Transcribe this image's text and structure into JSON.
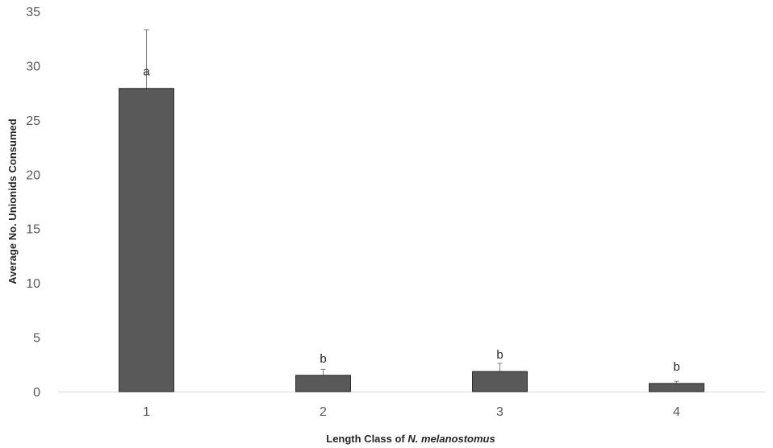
{
  "chart_data": {
    "type": "bar",
    "categories": [
      "1",
      "2",
      "3",
      "4"
    ],
    "values": [
      27.9,
      1.5,
      1.85,
      0.75
    ],
    "error": [
      5.4,
      0.55,
      0.75,
      0.2
    ],
    "significance_labels": [
      "a",
      "b",
      "b",
      "b"
    ],
    "xlabel_prefix": "Length Class of ",
    "xlabel_species": "N. melanostomus",
    "ylabel": "Average No. Unionids Consumed",
    "ylim": [
      0,
      35
    ],
    "yticks": [
      0,
      5,
      10,
      15,
      20,
      25,
      30,
      35
    ],
    "grid": false,
    "legend": "none",
    "bar_color": "#595959",
    "bar_edge_color": "#262626",
    "error_color": "#7f7f7f",
    "axis_color": "#d9d9d9"
  }
}
